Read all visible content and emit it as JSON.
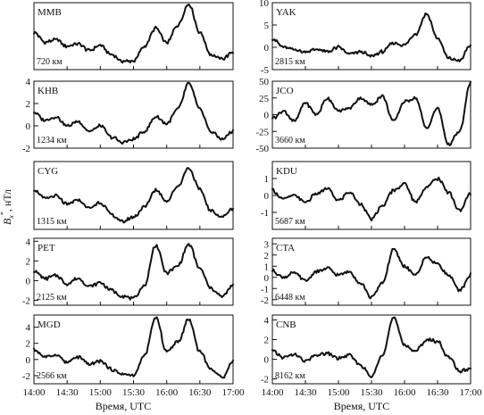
{
  "ylabel": "B_x*, нТл",
  "xlabel": "Время, UTC",
  "chart_data": [
    {
      "type": "line",
      "station": "MMB",
      "distance": "720 км",
      "ylim": [
        -2,
        4.3
      ],
      "yticks": [],
      "x": [
        "14:00",
        "14:10",
        "14:20",
        "14:30",
        "14:40",
        "14:50",
        "15:00",
        "15:10",
        "15:20",
        "15:30",
        "15:40",
        "15:50",
        "16:00",
        "16:10",
        "16:20",
        "16:30",
        "16:40",
        "16:50",
        "17:00"
      ],
      "values": [
        1.5,
        0.6,
        0.8,
        0.2,
        0.4,
        -0.2,
        0.3,
        -0.6,
        -1.2,
        -1.2,
        0.2,
        1.9,
        0.5,
        2.2,
        4.2,
        1.5,
        -0.6,
        -1.0,
        -0.4
      ]
    },
    {
      "type": "line",
      "station": "YAK",
      "distance": "2815 км",
      "ylim": [
        -5,
        10
      ],
      "yticks": [
        "10",
        "5",
        "0",
        "-5"
      ],
      "x": [
        "14:00",
        "14:10",
        "14:20",
        "14:30",
        "14:40",
        "14:50",
        "15:00",
        "15:10",
        "15:20",
        "15:30",
        "15:40",
        "15:50",
        "16:00",
        "16:10",
        "16:20",
        "16:30",
        "16:40",
        "16:50",
        "17:00"
      ],
      "values": [
        2,
        0,
        -0.5,
        -1,
        -0.5,
        -1,
        0,
        -1.5,
        -1,
        -2,
        -1,
        1,
        0.5,
        3,
        7.5,
        2,
        -2.5,
        -3,
        0.5
      ]
    },
    {
      "type": "line",
      "station": "KHB",
      "distance": "1234 км",
      "ylim": [
        -2,
        4
      ],
      "yticks": [
        "4",
        "2",
        "0",
        "-2"
      ],
      "x": [
        "14:00",
        "14:10",
        "14:20",
        "14:30",
        "14:40",
        "14:50",
        "15:00",
        "15:10",
        "15:20",
        "15:30",
        "15:40",
        "15:50",
        "16:00",
        "16:10",
        "16:20",
        "16:30",
        "16:40",
        "16:50",
        "17:00"
      ],
      "values": [
        1.2,
        0.5,
        0.8,
        0,
        0.4,
        -0.5,
        0,
        -1,
        -1.5,
        -1.2,
        -0.5,
        0.8,
        0.2,
        1.5,
        3.8,
        1.5,
        -0.5,
        -1.2,
        -0.5
      ]
    },
    {
      "type": "line",
      "station": "JCO",
      "distance": "3660 км",
      "ylim": [
        -50,
        50
      ],
      "yticks": [
        "50",
        "25",
        "0",
        "-25",
        "-50"
      ],
      "x": [
        "14:00",
        "14:10",
        "14:20",
        "14:30",
        "14:40",
        "14:50",
        "15:00",
        "15:10",
        "15:20",
        "15:30",
        "15:40",
        "15:50",
        "16:00",
        "16:10",
        "16:20",
        "16:30",
        "16:40",
        "16:50",
        "17:00"
      ],
      "values": [
        -5,
        5,
        -10,
        18,
        0,
        25,
        5,
        10,
        25,
        15,
        28,
        -10,
        20,
        25,
        -20,
        10,
        -45,
        -25,
        48
      ]
    },
    {
      "type": "line",
      "station": "CYG",
      "distance": "1315 км",
      "ylim": [
        -2,
        3.5
      ],
      "yticks": [],
      "x": [
        "14:00",
        "14:10",
        "14:20",
        "14:30",
        "14:40",
        "14:50",
        "15:00",
        "15:10",
        "15:20",
        "15:30",
        "15:40",
        "15:50",
        "16:00",
        "16:10",
        "16:20",
        "16:30",
        "16:40",
        "16:50",
        "17:00"
      ],
      "values": [
        1.2,
        0.5,
        0.7,
        0,
        0.4,
        -0.3,
        0.2,
        -0.8,
        -1.4,
        -1.0,
        -0.2,
        1.2,
        0.3,
        1.5,
        3.0,
        1.2,
        -0.5,
        -1.0,
        -0.3
      ]
    },
    {
      "type": "line",
      "station": "KDU",
      "distance": "5687 км",
      "ylim": [
        -2,
        2
      ],
      "yticks": [
        "1",
        "0",
        "-1"
      ],
      "x": [
        "14:00",
        "14:10",
        "14:20",
        "14:30",
        "14:40",
        "14:50",
        "15:00",
        "15:10",
        "15:20",
        "15:30",
        "15:40",
        "15:50",
        "16:00",
        "16:10",
        "16:20",
        "16:30",
        "16:40",
        "16:50",
        "17:00"
      ],
      "values": [
        0.3,
        -0.2,
        0,
        -0.4,
        0.1,
        0.4,
        -0.3,
        0.2,
        -0.5,
        -1.4,
        -0.6,
        0.3,
        0.7,
        -0.4,
        0.5,
        1.0,
        0.2,
        -0.9,
        0.1
      ]
    },
    {
      "type": "line",
      "station": "PET",
      "distance": "2125 км",
      "ylim": [
        -2.5,
        4.3
      ],
      "yticks": [
        "4",
        "2",
        "0",
        "-2"
      ],
      "x": [
        "14:00",
        "14:10",
        "14:20",
        "14:30",
        "14:40",
        "14:50",
        "15:00",
        "15:10",
        "15:20",
        "15:30",
        "15:40",
        "15:50",
        "16:00",
        "16:10",
        "16:20",
        "16:30",
        "16:40",
        "16:50",
        "17:00"
      ],
      "values": [
        1.0,
        0.2,
        0.5,
        -0.3,
        0.2,
        -0.6,
        -0.2,
        -1.0,
        -1.6,
        -1.8,
        -0.5,
        3.6,
        0.8,
        1.5,
        3.7,
        1.2,
        -0.8,
        -1.6,
        -0.5
      ]
    },
    {
      "type": "line",
      "station": "CTA",
      "distance": "6448 км",
      "ylim": [
        -2.5,
        3.5
      ],
      "yticks": [
        "3",
        "2",
        "1",
        "0",
        "-1",
        "-2"
      ],
      "x": [
        "14:00",
        "14:10",
        "14:20",
        "14:30",
        "14:40",
        "14:50",
        "15:00",
        "15:10",
        "15:20",
        "15:30",
        "15:40",
        "15:50",
        "16:00",
        "16:10",
        "16:20",
        "16:30",
        "16:40",
        "16:50",
        "17:00"
      ],
      "values": [
        0.6,
        0.0,
        0.4,
        -0.3,
        0.5,
        0.8,
        0.2,
        0.5,
        -0.5,
        -1.8,
        -0.5,
        2.5,
        1.0,
        0.2,
        1.8,
        1.2,
        0.2,
        -1.2,
        0.2
      ]
    },
    {
      "type": "line",
      "station": "MGD",
      "distance": "2566 км",
      "ylim": [
        -3,
        5.5
      ],
      "yticks": [
        "4",
        "2",
        "0",
        "-2"
      ],
      "x": [
        "14:00",
        "14:10",
        "14:20",
        "14:30",
        "14:40",
        "14:50",
        "15:00",
        "15:10",
        "15:20",
        "15:30",
        "15:40",
        "15:50",
        "16:00",
        "16:10",
        "16:20",
        "16:30",
        "16:40",
        "16:50",
        "17:00"
      ],
      "values": [
        1.2,
        0.3,
        0.6,
        -0.4,
        0.3,
        -0.6,
        -0.2,
        -1.2,
        -1.8,
        -2.0,
        0.5,
        5.2,
        1.0,
        2.2,
        5.0,
        1.0,
        -1.2,
        -2.2,
        -0.2
      ]
    },
    {
      "type": "line",
      "station": "CNB",
      "distance": "8162 км",
      "ylim": [
        -2.5,
        4.5
      ],
      "yticks": [
        "4",
        "2",
        "0",
        "-2"
      ],
      "x": [
        "14:00",
        "14:10",
        "14:20",
        "14:30",
        "14:40",
        "14:50",
        "15:00",
        "15:10",
        "15:20",
        "15:30",
        "15:40",
        "15:50",
        "16:00",
        "16:10",
        "16:20",
        "16:30",
        "16:40",
        "16:50",
        "17:00"
      ],
      "values": [
        0.8,
        0.2,
        0.5,
        -0.2,
        0.4,
        0.6,
        0.1,
        0.4,
        -0.6,
        -1.8,
        0.5,
        4.2,
        1.5,
        0.8,
        2.0,
        1.8,
        0.2,
        -1.2,
        -1.0
      ]
    }
  ],
  "xticks": [
    "14:00",
    "14:30",
    "15:00",
    "15:30",
    "16:00",
    "16:30",
    "17:00"
  ]
}
